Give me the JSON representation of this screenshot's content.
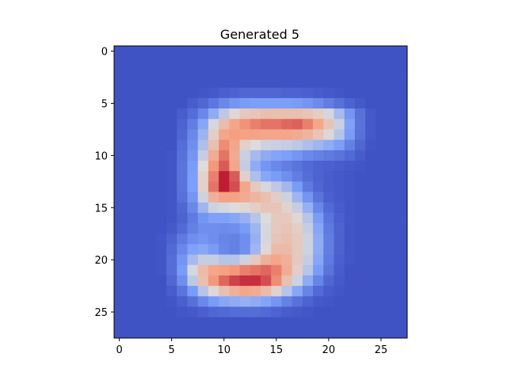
{
  "chart_data": {
    "type": "heatmap",
    "title": "Generated 5",
    "xlabel": "",
    "ylabel": "",
    "colormap": "coolwarm",
    "value_range": [
      0,
      1
    ],
    "grid": false,
    "legend": "none",
    "x_ticks": [
      0,
      5,
      10,
      15,
      20,
      25
    ],
    "y_ticks": [
      0,
      5,
      10,
      15,
      20,
      25
    ],
    "xlim": [
      -0.5,
      27.5
    ],
    "ylim": [
      27.5,
      -0.5
    ],
    "rows": 28,
    "cols": 28,
    "values": [
      [
        0.02,
        0.02,
        0.02,
        0.02,
        0.02,
        0.02,
        0.02,
        0.02,
        0.02,
        0.02,
        0.02,
        0.02,
        0.02,
        0.02,
        0.02,
        0.02,
        0.02,
        0.02,
        0.02,
        0.02,
        0.02,
        0.02,
        0.02,
        0.02,
        0.02,
        0.02,
        0.02,
        0.02
      ],
      [
        0.02,
        0.02,
        0.02,
        0.02,
        0.02,
        0.02,
        0.02,
        0.02,
        0.02,
        0.02,
        0.02,
        0.02,
        0.02,
        0.02,
        0.02,
        0.02,
        0.02,
        0.02,
        0.02,
        0.02,
        0.02,
        0.02,
        0.02,
        0.02,
        0.02,
        0.02,
        0.02,
        0.02
      ],
      [
        0.02,
        0.02,
        0.02,
        0.02,
        0.02,
        0.02,
        0.02,
        0.02,
        0.02,
        0.02,
        0.02,
        0.02,
        0.02,
        0.02,
        0.02,
        0.02,
        0.02,
        0.02,
        0.02,
        0.02,
        0.02,
        0.02,
        0.02,
        0.02,
        0.02,
        0.02,
        0.02,
        0.02
      ],
      [
        0.02,
        0.02,
        0.02,
        0.02,
        0.02,
        0.02,
        0.02,
        0.02,
        0.02,
        0.02,
        0.02,
        0.02,
        0.02,
        0.02,
        0.02,
        0.02,
        0.02,
        0.02,
        0.02,
        0.02,
        0.02,
        0.02,
        0.02,
        0.02,
        0.02,
        0.02,
        0.02,
        0.02
      ],
      [
        0.02,
        0.02,
        0.02,
        0.02,
        0.02,
        0.02,
        0.02,
        0.02,
        0.03,
        0.04,
        0.06,
        0.07,
        0.08,
        0.08,
        0.08,
        0.08,
        0.07,
        0.07,
        0.06,
        0.05,
        0.04,
        0.03,
        0.02,
        0.02,
        0.02,
        0.02,
        0.02,
        0.02
      ],
      [
        0.02,
        0.02,
        0.02,
        0.02,
        0.02,
        0.02,
        0.02,
        0.05,
        0.08,
        0.13,
        0.18,
        0.22,
        0.24,
        0.25,
        0.25,
        0.25,
        0.25,
        0.24,
        0.22,
        0.19,
        0.15,
        0.11,
        0.07,
        0.04,
        0.02,
        0.02,
        0.02,
        0.02
      ],
      [
        0.02,
        0.02,
        0.02,
        0.02,
        0.02,
        0.02,
        0.05,
        0.1,
        0.18,
        0.3,
        0.42,
        0.52,
        0.58,
        0.6,
        0.62,
        0.62,
        0.62,
        0.62,
        0.6,
        0.56,
        0.48,
        0.36,
        0.22,
        0.11,
        0.04,
        0.02,
        0.02,
        0.02
      ],
      [
        0.02,
        0.02,
        0.02,
        0.02,
        0.02,
        0.02,
        0.07,
        0.15,
        0.28,
        0.48,
        0.63,
        0.72,
        0.77,
        0.8,
        0.82,
        0.82,
        0.84,
        0.85,
        0.8,
        0.72,
        0.6,
        0.45,
        0.26,
        0.12,
        0.04,
        0.02,
        0.02,
        0.02
      ],
      [
        0.02,
        0.02,
        0.02,
        0.02,
        0.02,
        0.02,
        0.08,
        0.18,
        0.33,
        0.56,
        0.72,
        0.75,
        0.74,
        0.73,
        0.72,
        0.72,
        0.72,
        0.7,
        0.66,
        0.6,
        0.52,
        0.4,
        0.24,
        0.11,
        0.04,
        0.02,
        0.02,
        0.02
      ],
      [
        0.02,
        0.02,
        0.02,
        0.02,
        0.02,
        0.02,
        0.1,
        0.2,
        0.38,
        0.62,
        0.78,
        0.72,
        0.55,
        0.5,
        0.46,
        0.45,
        0.44,
        0.42,
        0.38,
        0.34,
        0.3,
        0.25,
        0.16,
        0.08,
        0.03,
        0.02,
        0.02,
        0.02
      ],
      [
        0.02,
        0.02,
        0.02,
        0.02,
        0.02,
        0.03,
        0.11,
        0.22,
        0.44,
        0.7,
        0.82,
        0.7,
        0.45,
        0.36,
        0.3,
        0.27,
        0.25,
        0.22,
        0.18,
        0.16,
        0.14,
        0.12,
        0.09,
        0.05,
        0.02,
        0.02,
        0.02,
        0.02
      ],
      [
        0.02,
        0.02,
        0.02,
        0.02,
        0.02,
        0.03,
        0.12,
        0.24,
        0.5,
        0.76,
        0.86,
        0.72,
        0.44,
        0.3,
        0.22,
        0.18,
        0.15,
        0.12,
        0.09,
        0.07,
        0.06,
        0.05,
        0.04,
        0.03,
        0.02,
        0.02,
        0.02,
        0.02
      ],
      [
        0.02,
        0.02,
        0.02,
        0.02,
        0.02,
        0.03,
        0.12,
        0.25,
        0.54,
        0.8,
        0.96,
        0.86,
        0.55,
        0.38,
        0.28,
        0.24,
        0.2,
        0.15,
        0.1,
        0.07,
        0.05,
        0.04,
        0.03,
        0.02,
        0.02,
        0.02,
        0.02,
        0.02
      ],
      [
        0.02,
        0.02,
        0.02,
        0.02,
        0.02,
        0.03,
        0.12,
        0.25,
        0.55,
        0.82,
        0.96,
        0.88,
        0.72,
        0.58,
        0.48,
        0.42,
        0.35,
        0.24,
        0.14,
        0.08,
        0.05,
        0.04,
        0.03,
        0.02,
        0.02,
        0.02,
        0.02,
        0.02
      ],
      [
        0.02,
        0.02,
        0.02,
        0.02,
        0.02,
        0.03,
        0.11,
        0.22,
        0.46,
        0.68,
        0.74,
        0.74,
        0.7,
        0.66,
        0.62,
        0.56,
        0.46,
        0.34,
        0.22,
        0.12,
        0.06,
        0.04,
        0.03,
        0.02,
        0.02,
        0.02,
        0.02,
        0.02
      ],
      [
        0.02,
        0.02,
        0.02,
        0.02,
        0.02,
        0.03,
        0.08,
        0.18,
        0.34,
        0.46,
        0.48,
        0.5,
        0.52,
        0.56,
        0.6,
        0.6,
        0.54,
        0.44,
        0.32,
        0.18,
        0.09,
        0.05,
        0.03,
        0.02,
        0.02,
        0.02,
        0.02,
        0.02
      ],
      [
        0.02,
        0.02,
        0.02,
        0.02,
        0.02,
        0.03,
        0.07,
        0.14,
        0.22,
        0.26,
        0.26,
        0.28,
        0.32,
        0.4,
        0.5,
        0.58,
        0.58,
        0.52,
        0.4,
        0.24,
        0.12,
        0.06,
        0.03,
        0.02,
        0.02,
        0.02,
        0.02,
        0.02
      ],
      [
        0.02,
        0.02,
        0.02,
        0.02,
        0.02,
        0.04,
        0.09,
        0.16,
        0.2,
        0.2,
        0.19,
        0.2,
        0.24,
        0.34,
        0.48,
        0.58,
        0.6,
        0.56,
        0.44,
        0.28,
        0.14,
        0.07,
        0.03,
        0.02,
        0.02,
        0.02,
        0.02,
        0.02
      ],
      [
        0.02,
        0.02,
        0.02,
        0.02,
        0.03,
        0.07,
        0.14,
        0.2,
        0.22,
        0.2,
        0.17,
        0.16,
        0.2,
        0.32,
        0.48,
        0.6,
        0.62,
        0.58,
        0.46,
        0.3,
        0.15,
        0.07,
        0.03,
        0.02,
        0.02,
        0.02,
        0.02,
        0.02
      ],
      [
        0.02,
        0.02,
        0.02,
        0.02,
        0.03,
        0.09,
        0.18,
        0.26,
        0.28,
        0.24,
        0.18,
        0.16,
        0.2,
        0.34,
        0.52,
        0.64,
        0.64,
        0.58,
        0.46,
        0.3,
        0.15,
        0.07,
        0.03,
        0.02,
        0.02,
        0.02,
        0.02,
        0.02
      ],
      [
        0.02,
        0.02,
        0.02,
        0.02,
        0.03,
        0.1,
        0.22,
        0.36,
        0.44,
        0.44,
        0.4,
        0.4,
        0.46,
        0.58,
        0.68,
        0.72,
        0.68,
        0.58,
        0.44,
        0.28,
        0.14,
        0.06,
        0.03,
        0.02,
        0.02,
        0.02,
        0.02,
        0.02
      ],
      [
        0.02,
        0.02,
        0.02,
        0.02,
        0.03,
        0.1,
        0.24,
        0.48,
        0.64,
        0.72,
        0.74,
        0.76,
        0.8,
        0.82,
        0.84,
        0.8,
        0.7,
        0.56,
        0.4,
        0.24,
        0.12,
        0.05,
        0.02,
        0.02,
        0.02,
        0.02,
        0.02,
        0.02
      ],
      [
        0.02,
        0.02,
        0.02,
        0.02,
        0.02,
        0.08,
        0.2,
        0.42,
        0.62,
        0.76,
        0.84,
        0.9,
        0.93,
        0.93,
        0.88,
        0.78,
        0.62,
        0.46,
        0.3,
        0.17,
        0.08,
        0.04,
        0.02,
        0.02,
        0.02,
        0.02,
        0.02,
        0.02
      ],
      [
        0.02,
        0.02,
        0.02,
        0.02,
        0.02,
        0.05,
        0.12,
        0.24,
        0.4,
        0.52,
        0.62,
        0.68,
        0.72,
        0.7,
        0.64,
        0.54,
        0.4,
        0.28,
        0.17,
        0.09,
        0.05,
        0.03,
        0.02,
        0.02,
        0.02,
        0.02,
        0.02,
        0.02
      ],
      [
        0.02,
        0.02,
        0.02,
        0.02,
        0.02,
        0.03,
        0.06,
        0.11,
        0.18,
        0.24,
        0.28,
        0.3,
        0.32,
        0.3,
        0.27,
        0.22,
        0.16,
        0.11,
        0.07,
        0.04,
        0.03,
        0.02,
        0.02,
        0.02,
        0.02,
        0.02,
        0.02,
        0.02
      ],
      [
        0.02,
        0.02,
        0.02,
        0.02,
        0.02,
        0.02,
        0.03,
        0.04,
        0.06,
        0.08,
        0.09,
        0.1,
        0.1,
        0.1,
        0.09,
        0.07,
        0.05,
        0.04,
        0.03,
        0.02,
        0.02,
        0.02,
        0.02,
        0.02,
        0.02,
        0.02,
        0.02,
        0.02
      ],
      [
        0.02,
        0.02,
        0.02,
        0.02,
        0.02,
        0.02,
        0.02,
        0.02,
        0.02,
        0.02,
        0.02,
        0.02,
        0.02,
        0.02,
        0.02,
        0.02,
        0.02,
        0.02,
        0.02,
        0.02,
        0.02,
        0.02,
        0.02,
        0.02,
        0.02,
        0.02,
        0.02,
        0.02
      ],
      [
        0.02,
        0.02,
        0.02,
        0.02,
        0.02,
        0.02,
        0.02,
        0.02,
        0.02,
        0.02,
        0.02,
        0.02,
        0.02,
        0.02,
        0.02,
        0.02,
        0.02,
        0.02,
        0.02,
        0.02,
        0.02,
        0.02,
        0.02,
        0.02,
        0.02,
        0.02,
        0.02,
        0.02
      ]
    ]
  }
}
